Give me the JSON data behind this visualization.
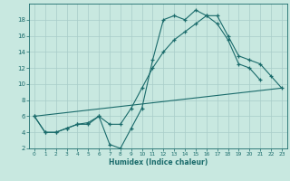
{
  "title": "",
  "xlabel": "Humidex (Indice chaleur)",
  "xlim": [
    -0.5,
    23.5
  ],
  "ylim": [
    2,
    20
  ],
  "yticks": [
    2,
    4,
    6,
    8,
    10,
    12,
    14,
    16,
    18
  ],
  "xticks": [
    0,
    1,
    2,
    3,
    4,
    5,
    6,
    7,
    8,
    9,
    10,
    11,
    12,
    13,
    14,
    15,
    16,
    17,
    18,
    19,
    20,
    21,
    22,
    23
  ],
  "bg_color": "#c8e8e0",
  "grid_color": "#a8ccc8",
  "line_color": "#1a6b6b",
  "line1_x": [
    0,
    1,
    2,
    3,
    4,
    5,
    6,
    7,
    8,
    9,
    10,
    11,
    12,
    13,
    14,
    15,
    16,
    17,
    18,
    19,
    20,
    21
  ],
  "line1_y": [
    6,
    4,
    4,
    4.5,
    5,
    5,
    6,
    2.5,
    2,
    4.5,
    7,
    13,
    18,
    18.5,
    18,
    19.2,
    18.5,
    17.5,
    15.5,
    12.5,
    12,
    10.5
  ],
  "line2_x": [
    0,
    1,
    2,
    3,
    4,
    5,
    6,
    7,
    8,
    9,
    10,
    11,
    12,
    13,
    14,
    15,
    16,
    17,
    18,
    19,
    20,
    21,
    22,
    23
  ],
  "line2_y": [
    6,
    4,
    4,
    4.5,
    5,
    5.2,
    6,
    5,
    5,
    7,
    9.5,
    12,
    14,
    15.5,
    16.5,
    17.5,
    18.5,
    18.5,
    16,
    13.5,
    13,
    12.5,
    11,
    9.5
  ],
  "line3_x": [
    0,
    23
  ],
  "line3_y": [
    6,
    9.5
  ]
}
